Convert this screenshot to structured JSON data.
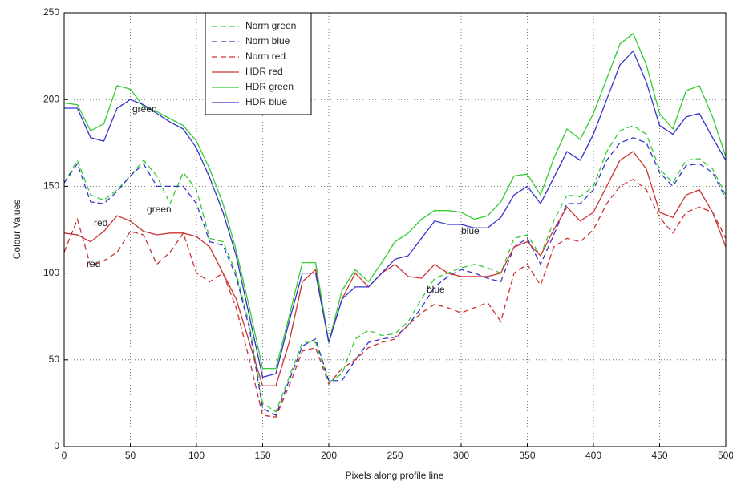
{
  "chart_data": {
    "type": "line",
    "xlabel": "Pixels along profile line",
    "ylabel": "Colour Values",
    "x": [
      0,
      10,
      20,
      30,
      40,
      50,
      60,
      70,
      80,
      90,
      100,
      110,
      120,
      130,
      140,
      150,
      160,
      170,
      180,
      190,
      200,
      210,
      220,
      230,
      240,
      250,
      260,
      270,
      280,
      290,
      300,
      310,
      320,
      330,
      340,
      350,
      360,
      370,
      380,
      390,
      400,
      410,
      420,
      430,
      440,
      450,
      460,
      470,
      480,
      490,
      500
    ],
    "series": [
      {
        "name": "Norm green",
        "color": "#33cc33",
        "style": "dashed",
        "values": [
          152,
          165,
          145,
          142,
          148,
          156,
          165,
          156,
          140,
          158,
          148,
          120,
          118,
          100,
          70,
          25,
          20,
          40,
          60,
          60,
          37,
          42,
          62,
          67,
          64,
          65,
          72,
          85,
          97,
          100,
          103,
          105,
          103,
          100,
          120,
          122,
          110,
          130,
          145,
          144,
          150,
          170,
          182,
          185,
          180,
          160,
          152,
          165,
          166,
          160,
          145
        ]
      },
      {
        "name": "Norm blue",
        "color": "#3333cc",
        "style": "dashed",
        "values": [
          152,
          163,
          141,
          140,
          147,
          156,
          163,
          150,
          150,
          150,
          140,
          118,
          116,
          98,
          68,
          22,
          18,
          38,
          58,
          62,
          38,
          38,
          50,
          60,
          62,
          63,
          70,
          80,
          92,
          98,
          102,
          100,
          97,
          95,
          115,
          120,
          105,
          122,
          140,
          140,
          148,
          165,
          175,
          178,
          175,
          158,
          150,
          162,
          163,
          158,
          143
        ]
      },
      {
        "name": "Norm red",
        "color": "#cc3333",
        "style": "dashed",
        "values": [
          112,
          131,
          104,
          107,
          112,
          124,
          122,
          105,
          112,
          123,
          100,
          95,
          100,
          80,
          50,
          18,
          17,
          35,
          55,
          57,
          36,
          45,
          50,
          57,
          60,
          62,
          70,
          77,
          82,
          80,
          77,
          80,
          83,
          72,
          100,
          105,
          93,
          115,
          120,
          118,
          125,
          140,
          150,
          154,
          148,
          132,
          123,
          135,
          138,
          135,
          120
        ]
      },
      {
        "name": "HDR red",
        "color": "#cc3333",
        "style": "solid",
        "values": [
          123,
          122,
          118,
          124,
          133,
          130,
          124,
          122,
          123,
          123,
          121,
          115,
          100,
          85,
          60,
          35,
          35,
          60,
          95,
          102,
          60,
          85,
          100,
          92,
          100,
          105,
          98,
          97,
          105,
          100,
          98,
          98,
          98,
          100,
          115,
          118,
          110,
          125,
          138,
          130,
          135,
          150,
          165,
          170,
          160,
          135,
          132,
          145,
          148,
          135,
          115
        ]
      },
      {
        "name": "HDR green",
        "color": "#33cc33",
        "style": "solid",
        "values": [
          198,
          197,
          182,
          186,
          208,
          206,
          196,
          193,
          189,
          185,
          176,
          160,
          140,
          113,
          80,
          45,
          45,
          75,
          106,
          106,
          60,
          90,
          102,
          95,
          106,
          118,
          123,
          131,
          136,
          136,
          135,
          131,
          133,
          141,
          156,
          157,
          145,
          166,
          183,
          177,
          192,
          212,
          232,
          238,
          220,
          192,
          183,
          205,
          208,
          190,
          167
        ]
      },
      {
        "name": "HDR blue",
        "color": "#3333cc",
        "style": "solid",
        "values": [
          195,
          195,
          178,
          176,
          195,
          200,
          197,
          192,
          187,
          183,
          172,
          155,
          135,
          110,
          75,
          40,
          42,
          72,
          100,
          100,
          60,
          85,
          92,
          92,
          100,
          108,
          110,
          120,
          130,
          128,
          128,
          126,
          126,
          132,
          145,
          150,
          140,
          155,
          170,
          165,
          180,
          200,
          220,
          228,
          210,
          185,
          180,
          190,
          192,
          178,
          165
        ]
      }
    ],
    "annotations": [
      "green",
      "green",
      "red",
      "red",
      "blue",
      "blue"
    ],
    "xlim": [
      0,
      500
    ],
    "xticks": [
      0,
      50,
      100,
      150,
      200,
      250,
      300,
      350,
      400,
      450,
      500
    ],
    "ylim": [
      0,
      250
    ],
    "yticks": [
      0,
      50,
      100,
      150,
      200,
      250
    ],
    "grid": true,
    "legend": "upper-left"
  }
}
